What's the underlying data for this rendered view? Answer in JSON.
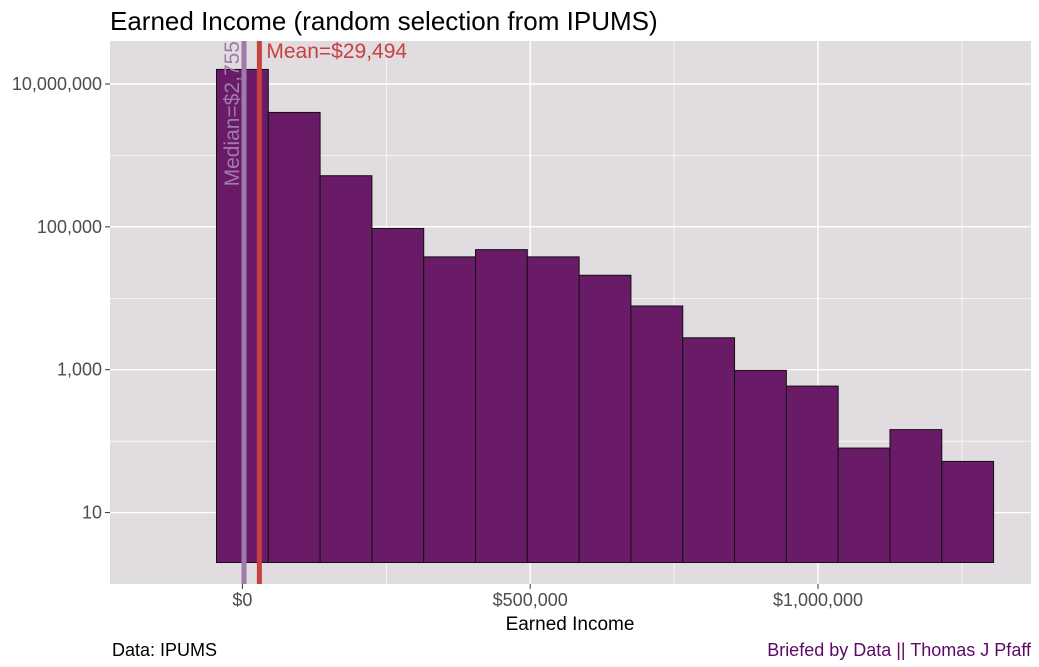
{
  "chart_data": {
    "type": "bar",
    "title": "Earned Income (random selection from IPUMS)",
    "xlabel": "Earned Income",
    "ylabel": "",
    "y_scale": "log10",
    "ylim": [
      1,
      40000000
    ],
    "xlim": [
      -230000,
      1370000
    ],
    "x_ticks": [
      0,
      500000,
      1000000
    ],
    "x_tick_labels": [
      "$0",
      "$500,000",
      "$1,000,000"
    ],
    "y_ticks": [
      10,
      1000,
      100000,
      10000000
    ],
    "y_tick_labels": [
      "10",
      "1,000",
      "100,000",
      "10,000,000"
    ],
    "grid": true,
    "bin_width": 90000,
    "bins": [
      {
        "x_start": -45000,
        "x_end": 45000,
        "count": 16000000
      },
      {
        "x_start": 45000,
        "x_end": 135000,
        "count": 4000000
      },
      {
        "x_start": 135000,
        "x_end": 225000,
        "count": 520000
      },
      {
        "x_start": 225000,
        "x_end": 315000,
        "count": 95000
      },
      {
        "x_start": 315000,
        "x_end": 405000,
        "count": 38000
      },
      {
        "x_start": 405000,
        "x_end": 495000,
        "count": 48000
      },
      {
        "x_start": 495000,
        "x_end": 585000,
        "count": 38000
      },
      {
        "x_start": 585000,
        "x_end": 675000,
        "count": 21000
      },
      {
        "x_start": 675000,
        "x_end": 765000,
        "count": 7800
      },
      {
        "x_start": 765000,
        "x_end": 855000,
        "count": 2800
      },
      {
        "x_start": 855000,
        "x_end": 945000,
        "count": 980
      },
      {
        "x_start": 945000,
        "x_end": 1035000,
        "count": 590
      },
      {
        "x_start": 1035000,
        "x_end": 1125000,
        "count": 80
      },
      {
        "x_start": 1125000,
        "x_end": 1215000,
        "count": 145
      },
      {
        "x_start": 1215000,
        "x_end": 1305000,
        "count": 52
      }
    ],
    "reference_lines": [
      {
        "label": "Median=$2,755",
        "value": 2755,
        "color": "#9e7bab"
      },
      {
        "label": "Mean=$29,494",
        "value": 29494,
        "color": "#c8403f"
      }
    ],
    "bar_color": "#6a1b68",
    "panel_color": "#e0dcdf"
  },
  "caption_left": "Data: IPUMS",
  "caption_right": "Briefed by Data || Thomas J Pfaff"
}
